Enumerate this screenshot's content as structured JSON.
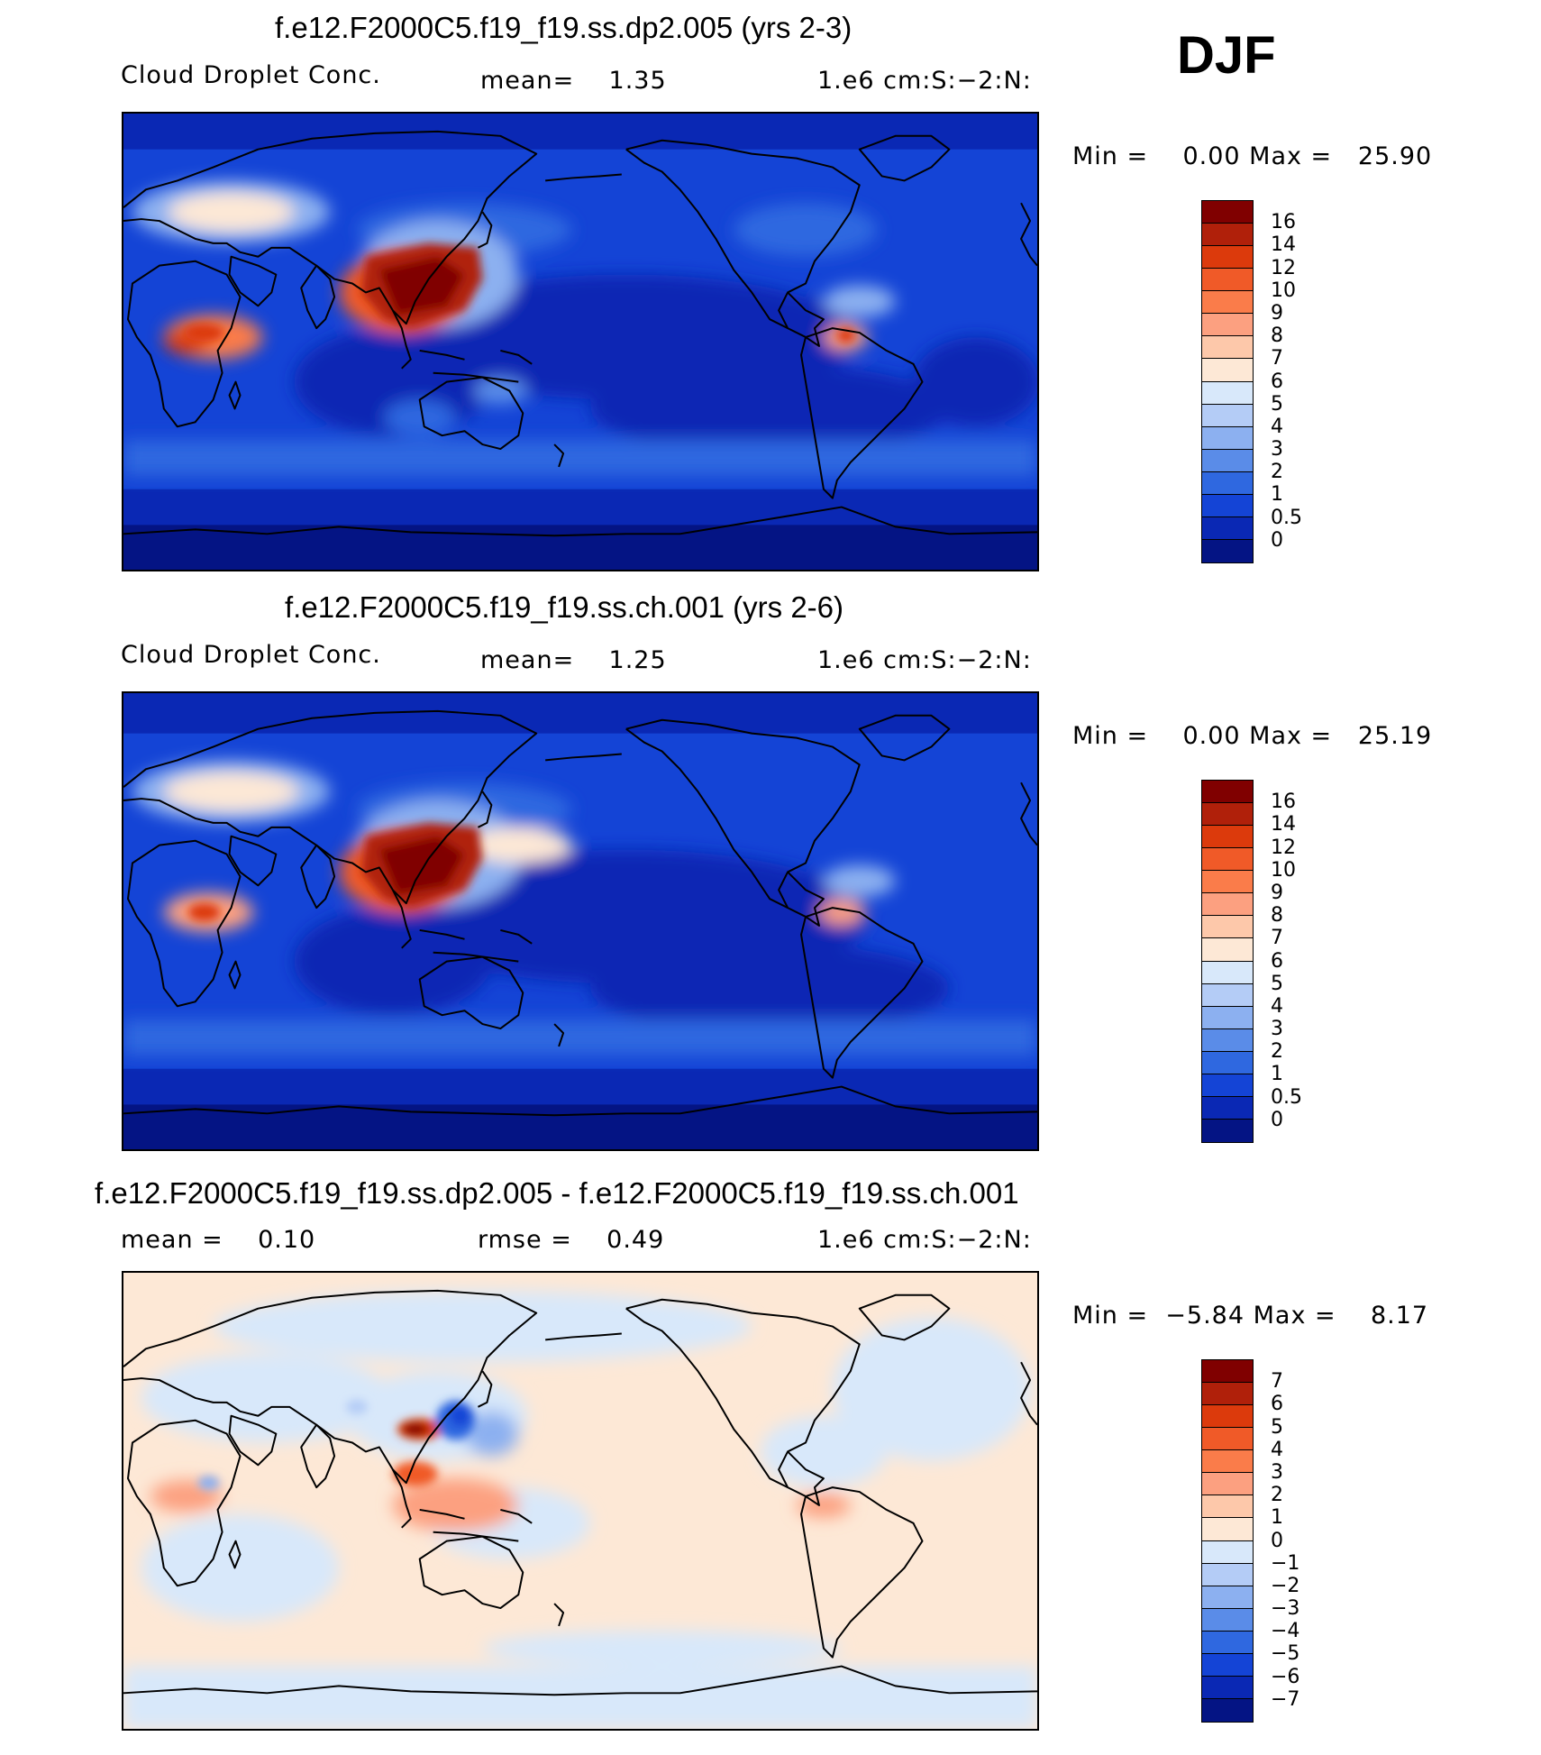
{
  "season": "DJF",
  "panels": [
    {
      "title": "f.e12.F2000C5.f19_f19.ss.dp2.005 (yrs 2-3)",
      "left_label": "Cloud Droplet Conc.",
      "center_label": "mean=    1.35",
      "right_label": "1.e6 cm:S:−2:N:",
      "min_max": "Min =    0.00 Max =   25.90",
      "field": "absolute",
      "colorbar_levels": [
        "16",
        "14",
        "12",
        "10",
        "9",
        "8",
        "7",
        "6",
        "5",
        "4",
        "3",
        "2",
        "1",
        "0.5",
        "0"
      ],
      "colorbar_colors": [
        "#800000",
        "#b0200a",
        "#dc3a0c",
        "#f05a28",
        "#fa7c4a",
        "#fca080",
        "#fdc8aa",
        "#fde8d6",
        "#d8e8fa",
        "#b4ccf6",
        "#8cb0f0",
        "#5a8ce8",
        "#2f68e0",
        "#1444d6",
        "#0a28b4",
        "#041484"
      ]
    },
    {
      "title": "f.e12.F2000C5.f19_f19.ss.ch.001 (yrs 2-6)",
      "left_label": "Cloud Droplet Conc.",
      "center_label": "mean=    1.25",
      "right_label": "1.e6 cm:S:−2:N:",
      "min_max": "Min =    0.00 Max =   25.19",
      "field": "absolute",
      "colorbar_levels": [
        "16",
        "14",
        "12",
        "10",
        "9",
        "8",
        "7",
        "6",
        "5",
        "4",
        "3",
        "2",
        "1",
        "0.5",
        "0"
      ],
      "colorbar_colors": [
        "#800000",
        "#b0200a",
        "#dc3a0c",
        "#f05a28",
        "#fa7c4a",
        "#fca080",
        "#fdc8aa",
        "#fde8d6",
        "#d8e8fa",
        "#b4ccf6",
        "#8cb0f0",
        "#5a8ce8",
        "#2f68e0",
        "#1444d6",
        "#0a28b4",
        "#041484"
      ]
    },
    {
      "title": "f.e12.F2000C5.f19_f19.ss.dp2.005 - f.e12.F2000C5.f19_f19.ss.ch.001",
      "left_label": "mean =    0.10",
      "center_label": "rmse =    0.49",
      "right_label": "1.e6 cm:S:−2:N:",
      "min_max": "Min =  −5.84 Max =    8.17",
      "field": "difference",
      "colorbar_levels": [
        "7",
        "6",
        "5",
        "4",
        "3",
        "2",
        "1",
        "0",
        "−1",
        "−2",
        "−3",
        "−4",
        "−5",
        "−6",
        "−7"
      ],
      "colorbar_colors": [
        "#800000",
        "#b0200a",
        "#dc3a0c",
        "#f05a28",
        "#fa7c4a",
        "#fca080",
        "#fdc8aa",
        "#fde8d6",
        "#d8e8fa",
        "#b4ccf6",
        "#8cb0f0",
        "#5a8ce8",
        "#2f68e0",
        "#1444d6",
        "#0a28b4",
        "#041484"
      ]
    }
  ]
}
